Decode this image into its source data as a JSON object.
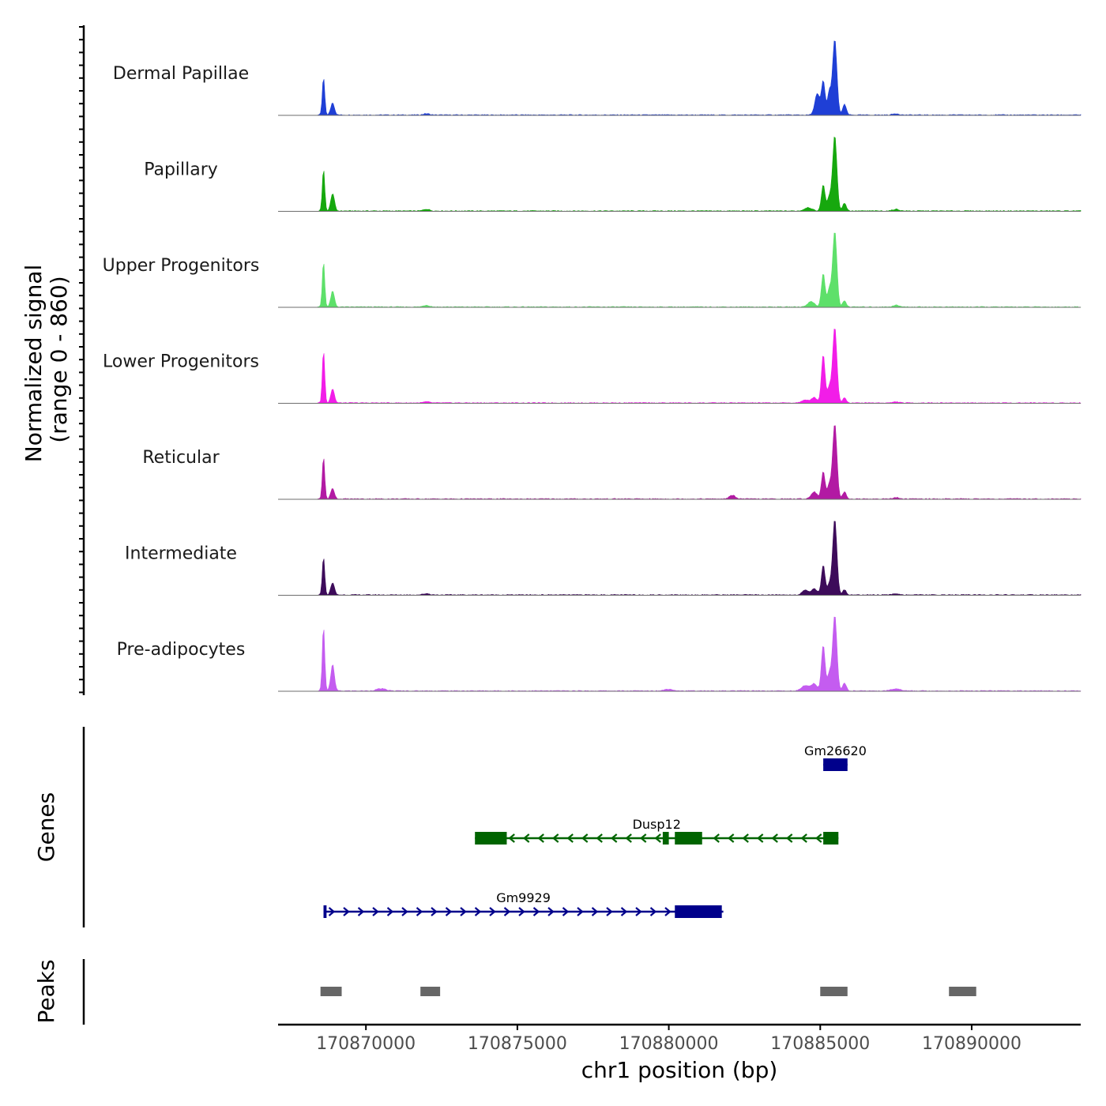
{
  "chart_data": {
    "type": "area",
    "chromosome": "chr1",
    "xlim": [
      170867100,
      170893600
    ],
    "x_ticks": [
      170870000,
      170875000,
      170880000,
      170885000,
      170890000
    ],
    "x_tick_labels": [
      "170870000",
      "170875000",
      "170880000",
      "170885000",
      "170890000"
    ],
    "xlabel": "chr1 position (bp)",
    "ylabel_line1": "Normalized signal",
    "ylabel_line2": "(range 0 - 860)",
    "y_range": [
      0,
      860
    ],
    "genes_label": "Genes",
    "peaks_label": "Peaks",
    "tracks": [
      {
        "name": "Dermal Papillae",
        "color": "#1f3fd6",
        "peaks": [
          [
            170868600,
            430,
            40
          ],
          [
            170868900,
            140,
            60
          ],
          [
            170884900,
            240,
            80
          ],
          [
            170885100,
            380,
            60
          ],
          [
            170885300,
            260,
            60
          ],
          [
            170885480,
            860,
            70
          ],
          [
            170885800,
            120,
            60
          ],
          [
            170872000,
            15,
            100
          ],
          [
            170887500,
            15,
            100
          ]
        ]
      },
      {
        "name": "Papillary",
        "color": "#16a80e",
        "peaks": [
          [
            170868600,
            480,
            40
          ],
          [
            170868900,
            200,
            60
          ],
          [
            170884600,
            40,
            120
          ],
          [
            170885100,
            300,
            60
          ],
          [
            170885300,
            160,
            60
          ],
          [
            170885480,
            860,
            70
          ],
          [
            170885800,
            90,
            60
          ],
          [
            170872000,
            20,
            100
          ],
          [
            170887500,
            20,
            100
          ]
        ]
      },
      {
        "name": "Upper Progenitors",
        "color": "#5ee06a",
        "peaks": [
          [
            170868600,
            520,
            40
          ],
          [
            170868900,
            180,
            60
          ],
          [
            170884700,
            60,
            120
          ],
          [
            170885100,
            380,
            60
          ],
          [
            170885300,
            200,
            60
          ],
          [
            170885480,
            860,
            70
          ],
          [
            170885800,
            70,
            60
          ],
          [
            170872000,
            20,
            100
          ],
          [
            170887500,
            20,
            100
          ]
        ]
      },
      {
        "name": "Lower Progenitors",
        "color": "#f21de8",
        "peaks": [
          [
            170868600,
            600,
            40
          ],
          [
            170868900,
            160,
            60
          ],
          [
            170884500,
            30,
            120
          ],
          [
            170884800,
            60,
            100
          ],
          [
            170885100,
            550,
            60
          ],
          [
            170885300,
            180,
            60
          ],
          [
            170885480,
            860,
            70
          ],
          [
            170885800,
            60,
            60
          ],
          [
            170872000,
            12,
            100
          ],
          [
            170887500,
            12,
            100
          ]
        ]
      },
      {
        "name": "Reticular",
        "color": "#b21aa3",
        "peaks": [
          [
            170868600,
            480,
            40
          ],
          [
            170868900,
            120,
            60
          ],
          [
            170884800,
            80,
            100
          ],
          [
            170885100,
            310,
            60
          ],
          [
            170885300,
            160,
            60
          ],
          [
            170885480,
            860,
            70
          ],
          [
            170885800,
            80,
            60
          ],
          [
            170882100,
            40,
            100
          ],
          [
            170887500,
            15,
            100
          ]
        ]
      },
      {
        "name": "Intermediate",
        "color": "#3d0b5a",
        "peaks": [
          [
            170868600,
            440,
            40
          ],
          [
            170868900,
            140,
            60
          ],
          [
            170884500,
            50,
            100
          ],
          [
            170884800,
            70,
            100
          ],
          [
            170885100,
            340,
            60
          ],
          [
            170885300,
            120,
            60
          ],
          [
            170885480,
            860,
            70
          ],
          [
            170885800,
            60,
            60
          ],
          [
            170872000,
            15,
            100
          ],
          [
            170887500,
            15,
            100
          ]
        ]
      },
      {
        "name": "Pre-adipocytes",
        "color": "#c45cf0",
        "peaks": [
          [
            170868600,
            740,
            40
          ],
          [
            170868900,
            300,
            60
          ],
          [
            170884500,
            60,
            120
          ],
          [
            170884800,
            80,
            100
          ],
          [
            170885100,
            520,
            60
          ],
          [
            170885300,
            200,
            60
          ],
          [
            170885480,
            860,
            70
          ],
          [
            170885800,
            90,
            60
          ],
          [
            170870500,
            25,
            150
          ],
          [
            170880000,
            20,
            150
          ],
          [
            170887500,
            25,
            150
          ]
        ]
      }
    ],
    "genes": [
      {
        "name": "Gm26620",
        "strand": "+",
        "color": "#00008b",
        "start": 170885100,
        "end": 170885900,
        "exons": [
          [
            170885100,
            170885900
          ]
        ],
        "row": 0
      },
      {
        "name": "Dusp12",
        "strand": "-",
        "color": "#006400",
        "start": 170873600,
        "end": 170885600,
        "exons": [
          [
            170873600,
            170874650
          ],
          [
            170879800,
            170880000
          ],
          [
            170880200,
            170881100
          ],
          [
            170885100,
            170885600
          ]
        ],
        "row": 1
      },
      {
        "name": "Gm9929",
        "strand": "+",
        "color": "#00008b",
        "start": 170868600,
        "end": 170881800,
        "exons": [
          [
            170868600,
            170868700
          ],
          [
            170880200,
            170881750
          ]
        ],
        "row": 2
      }
    ],
    "peak_regions": [
      [
        170868500,
        170869200
      ],
      [
        170871800,
        170872450
      ],
      [
        170885000,
        170885900
      ],
      [
        170889250,
        170890150
      ]
    ]
  }
}
